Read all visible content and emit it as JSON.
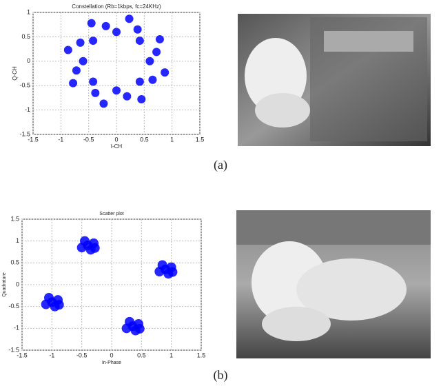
{
  "chart_data": [
    {
      "type": "scatter",
      "title": "Constellation (Rb=1kbps, fc=24KHz)",
      "x_label": "I-CH",
      "y_label": "Q-CH",
      "xlim": [
        -1.5,
        1.5
      ],
      "ylim": [
        -1.5,
        1
      ],
      "xticks": [
        -1.5,
        -1,
        -0.5,
        0,
        0.5,
        1,
        1.5
      ],
      "yticks": [
        -1.5,
        -1,
        -0.5,
        0,
        0.5,
        1
      ],
      "grid": true,
      "series": [
        {
          "color": "#0000ff",
          "x": [
            0.6,
            0.72,
            0.78,
            0.42,
            0.38,
            0.23,
            0,
            -0.19,
            -0.45,
            -0.42,
            -0.65,
            -0.87,
            -0.6,
            -0.72,
            -0.78,
            -0.42,
            -0.38,
            -0.23,
            0,
            0.19,
            0.45,
            0.42,
            0.65,
            0.87
          ],
          "values": [
            0,
            0.19,
            0.45,
            0.42,
            0.65,
            0.87,
            0.6,
            0.72,
            0.78,
            0.42,
            0.38,
            0.23,
            0,
            -0.19,
            -0.45,
            -0.42,
            -0.65,
            -0.87,
            -0.6,
            -0.72,
            -0.78,
            -0.42,
            -0.38,
            -0.23
          ]
        }
      ]
    },
    {
      "type": "scatter",
      "title": "Scatter plot",
      "x_label": "In-Phase",
      "y_label": "Quadrature",
      "xlim": [
        -1.5,
        1.5
      ],
      "ylim": [
        -1.5,
        1.5
      ],
      "xticks": [
        -1.5,
        -1,
        -0.5,
        0,
        0.5,
        1,
        1.5
      ],
      "yticks": [
        -1.5,
        -1,
        -0.5,
        0,
        0.5,
        1,
        1.5
      ],
      "grid": true,
      "series": [
        {
          "color": "#0000ff",
          "x": [
            -0.4,
            -0.3,
            -0.5,
            -0.35,
            -0.45,
            -0.28,
            0.9,
            1,
            0.8,
            0.95,
            0.85,
            1.02,
            -1,
            -0.9,
            -1.1,
            -0.95,
            -1.05,
            -0.88,
            0.35,
            0.45,
            0.25,
            0.4,
            0.3,
            0.47
          ],
          "values": [
            0.9,
            0.95,
            0.85,
            0.8,
            1,
            0.84,
            0.35,
            0.4,
            0.3,
            0.25,
            0.45,
            0.29,
            -0.4,
            -0.35,
            -0.45,
            -0.5,
            -0.3,
            -0.46,
            -0.95,
            -0.9,
            -1,
            -1.05,
            -0.85,
            -1.01
          ]
        }
      ]
    }
  ],
  "captions": [
    "(a)",
    "(b)"
  ]
}
